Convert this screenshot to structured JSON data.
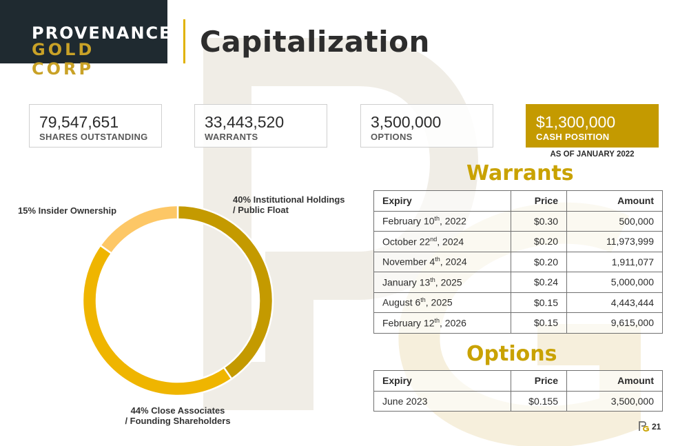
{
  "brand": {
    "line1": "PROVENANCE",
    "line2": "GOLD CORP"
  },
  "page_title": "Capitalization",
  "stats": [
    {
      "value": "79,547,651",
      "label": "SHARES OUTSTANDING"
    },
    {
      "value": "33,443,520",
      "label": "WARRANTS"
    },
    {
      "value": "3,500,000",
      "label": "OPTIONS"
    },
    {
      "value": "$1,300,000",
      "label": "CASH POSITION"
    }
  ],
  "as_of": "AS OF JANUARY 2022",
  "colors": {
    "gold_dark": "#c49a00",
    "gold_mid": "#efb500",
    "gold_light": "#fdc766",
    "navy": "#1f2a30"
  },
  "chart_data": {
    "type": "pie",
    "variant": "donut",
    "title": "",
    "slices": [
      {
        "label": "40% Institutional Holdings / Public Float",
        "label_lines": [
          "40% Institutional Holdings",
          "/ Public Float"
        ],
        "value": 40,
        "color": "#c49a00"
      },
      {
        "label": "44% Close Associates / Founding Shareholders",
        "label_lines": [
          "44% Close Associates",
          "/ Founding Shareholders"
        ],
        "value": 44,
        "color": "#efb500"
      },
      {
        "label": "15% Insider Ownership",
        "label_lines": [
          "15% Insider Ownership"
        ],
        "value": 15,
        "color": "#fdc766"
      }
    ]
  },
  "warrants": {
    "title": "Warrants",
    "headers": [
      "Expiry",
      "Price",
      "Amount"
    ],
    "rows": [
      {
        "expiry_day": "February 10",
        "expiry_sup": "th",
        "expiry_year": ", 2022",
        "price": "$0.30",
        "amount": "500,000"
      },
      {
        "expiry_day": "October 22",
        "expiry_sup": "nd",
        "expiry_year": ", 2024",
        "price": "$0.20",
        "amount": "11,973,999"
      },
      {
        "expiry_day": "November 4",
        "expiry_sup": "th",
        "expiry_year": ", 2024",
        "price": "$0.20",
        "amount": "1,911,077"
      },
      {
        "expiry_day": "January 13",
        "expiry_sup": "th",
        "expiry_year": ", 2025",
        "price": "$0.24",
        "amount": "5,000,000"
      },
      {
        "expiry_day": "August 6",
        "expiry_sup": "th",
        "expiry_year": ", 2025",
        "price": "$0.15",
        "amount": "4,443,444"
      },
      {
        "expiry_day": "February 12",
        "expiry_sup": "th",
        "expiry_year": ", 2026",
        "price": "$0.15",
        "amount": "9,615,000"
      }
    ]
  },
  "options": {
    "title": "Options",
    "headers": [
      "Expiry",
      "Price",
      "Amount"
    ],
    "rows": [
      {
        "expiry": "June 2023",
        "price": "$0.155",
        "amount": "3,500,000"
      }
    ]
  },
  "page_number": "21",
  "watermark_icon": "pg-monogram-icon"
}
